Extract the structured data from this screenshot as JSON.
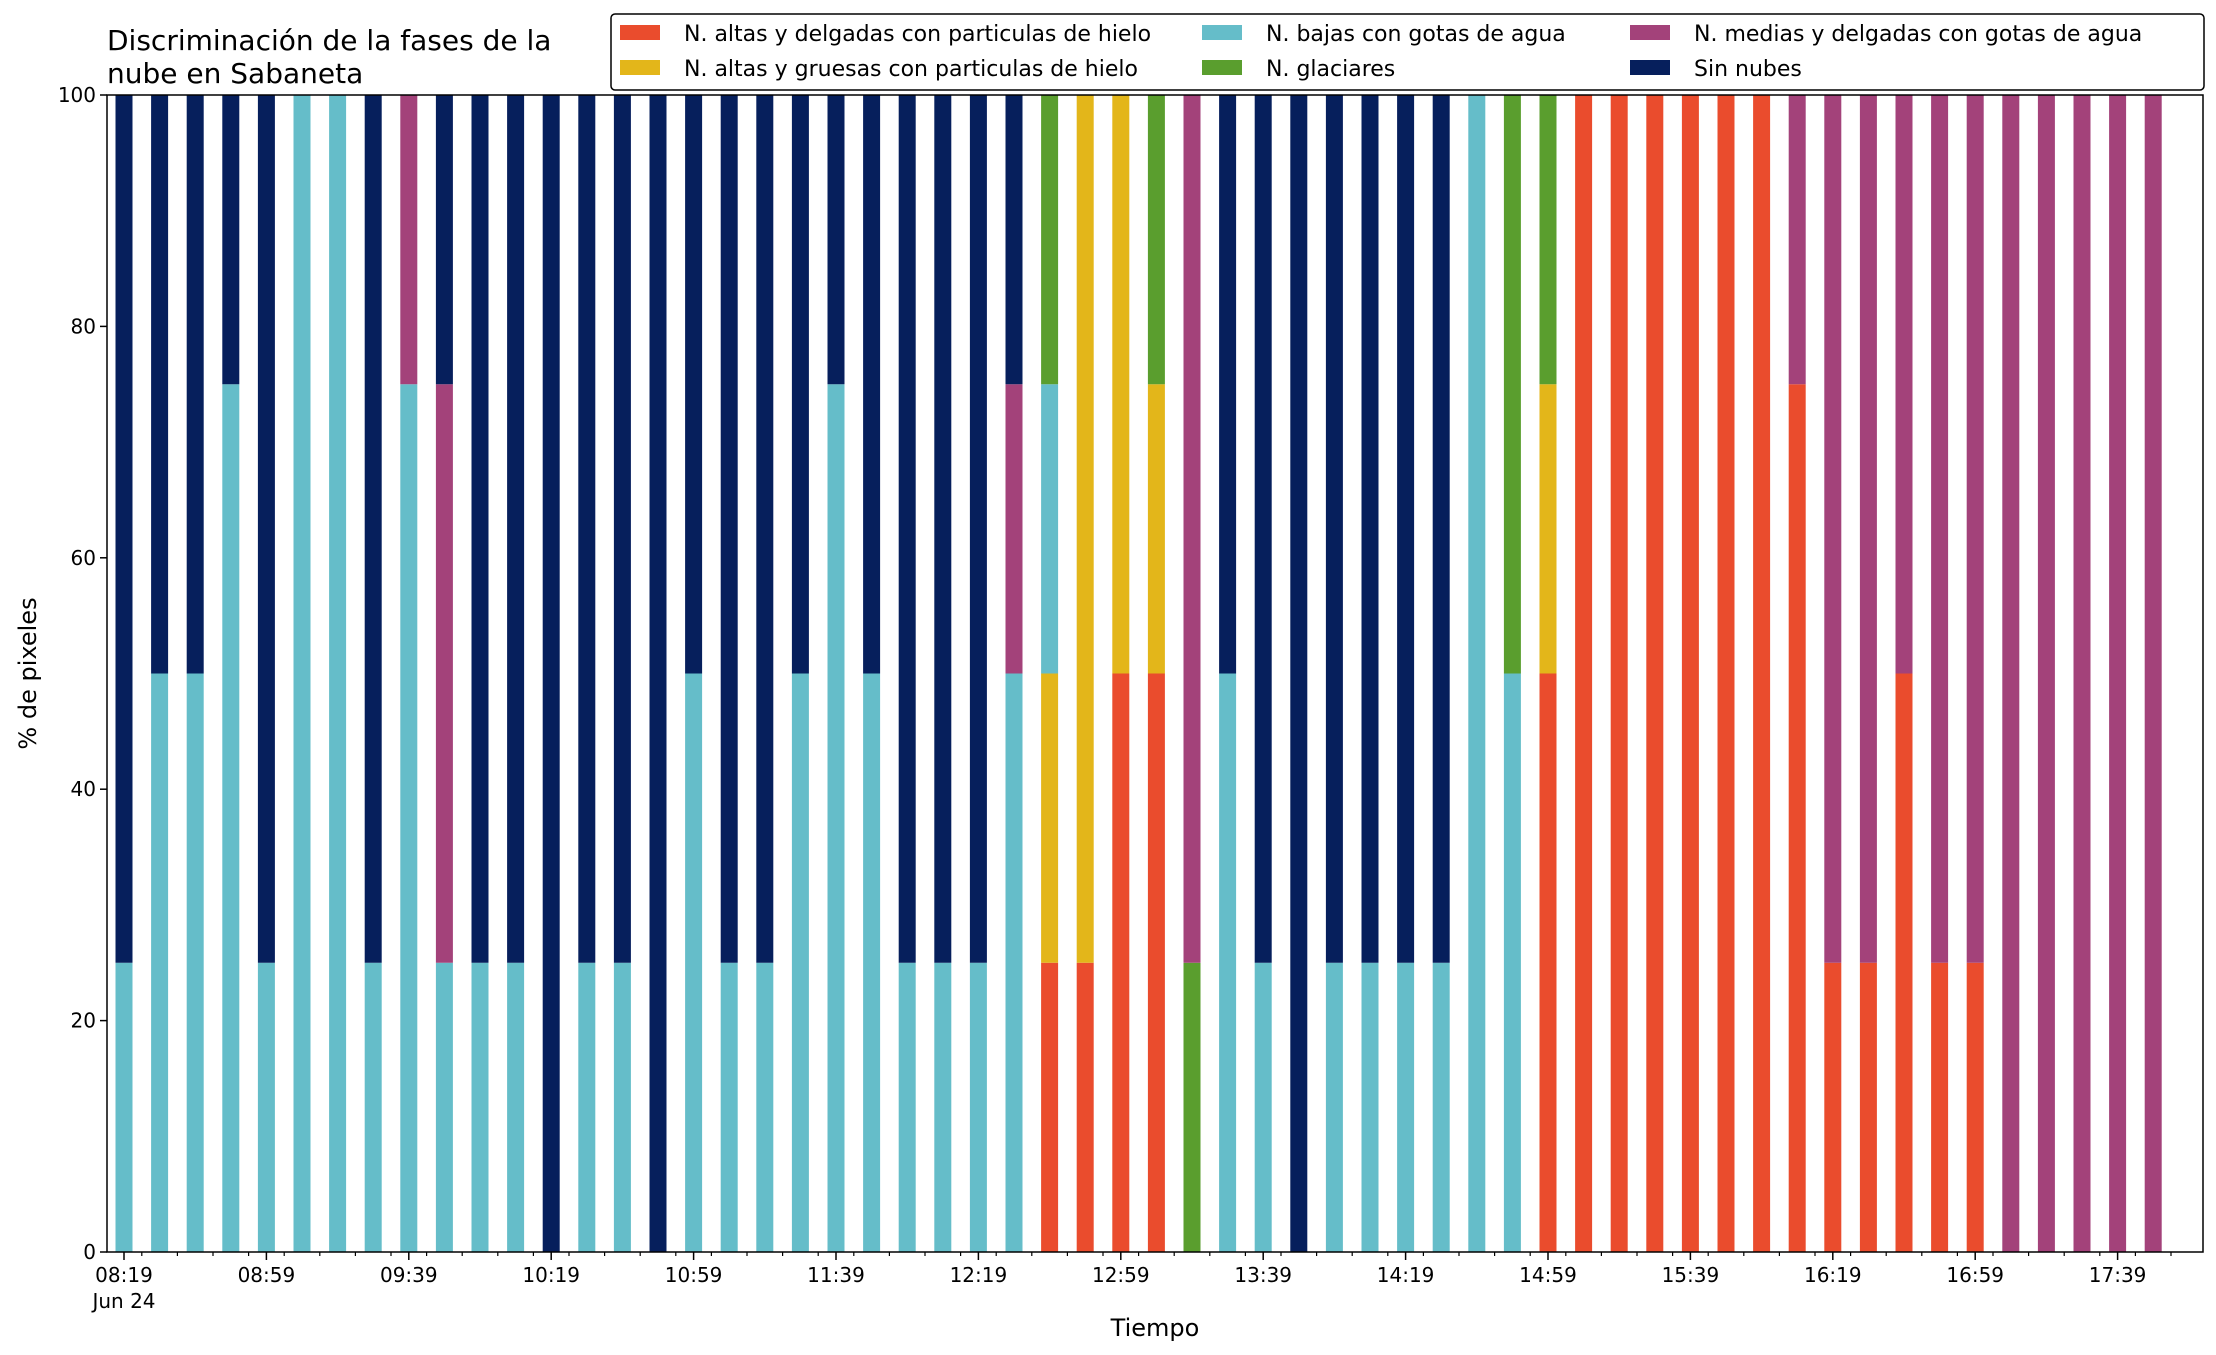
{
  "chart_data": {
    "type": "bar",
    "stacked": true,
    "title_lines": [
      "Discriminación de la fases de la",
      "nube en Sabaneta"
    ],
    "xlabel": "Tiempo",
    "ylabel": "% de pixeles",
    "ylim": [
      0,
      100
    ],
    "yticks": [
      "0",
      "20",
      "40",
      "60",
      "80",
      "100"
    ],
    "x_tick_labels": [
      "08:19",
      "08:59",
      "09:39",
      "10:19",
      "10:59",
      "11:39",
      "12:19",
      "12:59",
      "13:39",
      "14:19",
      "14:59",
      "15:39",
      "16:19",
      "16:59",
      "17:39"
    ],
    "x_date_label": "Jun 24",
    "grid": false,
    "legend_placement": "top-right",
    "categories": [
      "08:19",
      "08:29",
      "08:39",
      "08:49",
      "08:59",
      "09:09",
      "09:19",
      "09:29",
      "09:39",
      "09:49",
      "09:59",
      "10:09",
      "10:19",
      "10:29",
      "10:39",
      "10:49",
      "10:59",
      "11:09",
      "11:19",
      "11:29",
      "11:39",
      "11:49",
      "11:59",
      "12:09",
      "12:19",
      "12:29",
      "12:39",
      "12:49",
      "12:59",
      "13:09",
      "13:19",
      "13:29",
      "13:39",
      "13:49",
      "13:59",
      "14:09",
      "14:19",
      "14:29",
      "14:39",
      "14:49",
      "14:59",
      "15:09",
      "15:19",
      "15:29",
      "15:39",
      "15:49",
      "15:59",
      "16:09",
      "16:19",
      "16:29",
      "16:39",
      "16:49",
      "16:59",
      "17:09",
      "17:19",
      "17:29",
      "17:39",
      "17:49"
    ],
    "series": [
      {
        "name": "N. altas y delgadas con particulas de hielo",
        "color": "#ea4c2d",
        "values": [
          0,
          0,
          0,
          0,
          0,
          0,
          0,
          0,
          0,
          0,
          0,
          0,
          0,
          0,
          0,
          0,
          0,
          0,
          0,
          0,
          0,
          0,
          0,
          0,
          0,
          0,
          25,
          25,
          50,
          50,
          0,
          0,
          0,
          0,
          0,
          0,
          0,
          0,
          0,
          0,
          50,
          100,
          100,
          100,
          100,
          100,
          100,
          75,
          25,
          25,
          50,
          25,
          25,
          0,
          0,
          0,
          0,
          0
        ]
      },
      {
        "name": "N. altas y gruesas con particulas de hielo",
        "color": "#e3b61a",
        "values": [
          0,
          0,
          0,
          0,
          0,
          0,
          0,
          0,
          0,
          0,
          0,
          0,
          0,
          0,
          0,
          0,
          0,
          0,
          0,
          0,
          0,
          0,
          0,
          0,
          0,
          0,
          25,
          75,
          50,
          25,
          0,
          0,
          0,
          0,
          0,
          0,
          0,
          0,
          0,
          0,
          25,
          0,
          0,
          0,
          0,
          0,
          0,
          0,
          0,
          0,
          0,
          0,
          0,
          0,
          0,
          0,
          0,
          0
        ]
      },
      {
        "name": "N. bajas con gotas de agua",
        "color": "#65bdc9",
        "values": [
          25,
          50,
          50,
          75,
          25,
          100,
          100,
          25,
          75,
          25,
          25,
          25,
          0,
          25,
          25,
          0,
          50,
          25,
          25,
          50,
          75,
          50,
          25,
          25,
          25,
          50,
          25,
          0,
          0,
          0,
          0,
          50,
          25,
          0,
          25,
          25,
          25,
          25,
          100,
          50,
          0,
          0,
          0,
          0,
          0,
          0,
          0,
          0,
          0,
          0,
          0,
          0,
          0,
          0,
          0,
          0,
          0,
          0
        ]
      },
      {
        "name": "N. glaciares",
        "color": "#5a9e2e",
        "values": [
          0,
          0,
          0,
          0,
          0,
          0,
          0,
          0,
          0,
          0,
          0,
          0,
          0,
          0,
          0,
          0,
          0,
          0,
          0,
          0,
          0,
          0,
          0,
          0,
          0,
          0,
          25,
          0,
          0,
          25,
          25,
          0,
          0,
          0,
          0,
          0,
          0,
          0,
          0,
          50,
          25,
          0,
          0,
          0,
          0,
          0,
          0,
          0,
          0,
          0,
          0,
          0,
          0,
          0,
          0,
          0,
          0,
          0
        ]
      },
      {
        "name": "N. medias y delgadas con gotas de agua",
        "color": "#a3427a",
        "values": [
          0,
          0,
          0,
          0,
          0,
          0,
          0,
          0,
          25,
          50,
          0,
          0,
          0,
          0,
          0,
          0,
          0,
          0,
          0,
          0,
          0,
          0,
          0,
          0,
          0,
          25,
          0,
          0,
          0,
          0,
          75,
          0,
          0,
          0,
          0,
          0,
          0,
          0,
          0,
          0,
          0,
          0,
          0,
          0,
          0,
          0,
          0,
          25,
          75,
          75,
          50,
          75,
          75,
          100,
          100,
          100,
          100,
          100
        ]
      },
      {
        "name": "Sin nubes",
        "color": "#061f5c",
        "values": [
          75,
          50,
          50,
          25,
          75,
          0,
          0,
          75,
          0,
          25,
          75,
          75,
          100,
          75,
          75,
          100,
          50,
          75,
          75,
          50,
          25,
          50,
          75,
          75,
          75,
          25,
          0,
          0,
          0,
          0,
          0,
          50,
          75,
          100,
          75,
          75,
          75,
          75,
          0,
          0,
          0,
          0,
          0,
          0,
          0,
          0,
          0,
          0,
          0,
          0,
          0,
          0,
          0,
          0,
          0,
          0,
          0,
          0
        ]
      }
    ]
  }
}
